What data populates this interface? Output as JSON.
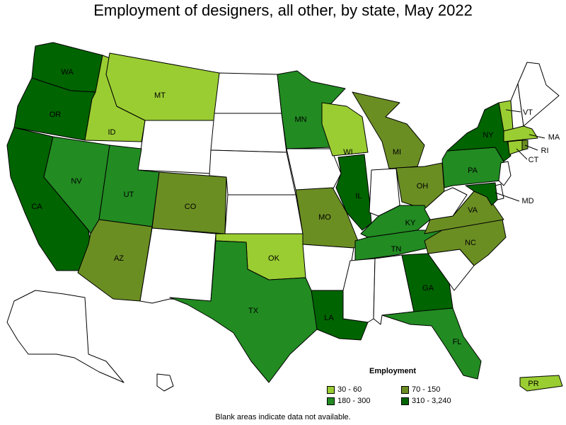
{
  "title": "Employment of designers, all other, by state, May 2022",
  "legend": {
    "title": "Employment",
    "items": [
      {
        "label": "30 - 60",
        "color": "#9acd32"
      },
      {
        "label": "70 - 150",
        "color": "#6b8e23"
      },
      {
        "label": "180 - 300",
        "color": "#228b22"
      },
      {
        "label": "310 - 3,240",
        "color": "#006400"
      }
    ]
  },
  "footnote": "Blank areas indicate data not available.",
  "colors": {
    "no_data": "#ffffff"
  },
  "states": {
    "WA": {
      "label": "WA",
      "class": 3
    },
    "OR": {
      "label": "OR",
      "class": 3
    },
    "CA": {
      "label": "CA",
      "class": 3
    },
    "ID": {
      "label": "ID",
      "class": 0
    },
    "MT": {
      "label": "MT",
      "class": 0
    },
    "NV": {
      "label": "NV",
      "class": 2
    },
    "UT": {
      "label": "UT",
      "class": 2
    },
    "AZ": {
      "label": "AZ",
      "class": 1
    },
    "CO": {
      "label": "CO",
      "class": 1
    },
    "TX": {
      "label": "TX",
      "class": 2
    },
    "OK": {
      "label": "OK",
      "class": 0
    },
    "MN": {
      "label": "MN",
      "class": 2
    },
    "WI": {
      "label": "WI",
      "class": 0
    },
    "MI": {
      "label": "MI",
      "class": 1
    },
    "MO": {
      "label": "MO",
      "class": 1
    },
    "IL": {
      "label": "IL",
      "class": 3
    },
    "OH": {
      "label": "OH",
      "class": 1
    },
    "KY": {
      "label": "KY",
      "class": 2
    },
    "TN": {
      "label": "TN",
      "class": 2
    },
    "GA": {
      "label": "GA",
      "class": 3
    },
    "FL": {
      "label": "FL",
      "class": 2
    },
    "LA": {
      "label": "LA",
      "class": 3
    },
    "NC": {
      "label": "NC",
      "class": 1
    },
    "VA": {
      "label": "VA",
      "class": 1
    },
    "PA": {
      "label": "PA",
      "class": 2
    },
    "NY": {
      "label": "NY",
      "class": 3
    },
    "MD": {
      "label": "MD",
      "class": 3
    },
    "VT": {
      "label": "VT",
      "class": 0
    },
    "MA": {
      "label": "MA",
      "class": 0
    },
    "RI": {
      "label": "RI",
      "class": 1
    },
    "CT": {
      "label": "CT",
      "class": 0
    },
    "PR": {
      "label": "PR",
      "class": 0
    },
    "WY": {
      "class": null
    },
    "ND": {
      "class": null
    },
    "SD": {
      "class": null
    },
    "NE": {
      "class": null
    },
    "KS": {
      "class": null
    },
    "NM": {
      "class": null
    },
    "IA": {
      "class": null
    },
    "IN": {
      "class": null
    },
    "AR": {
      "class": null
    },
    "MS": {
      "class": null
    },
    "AL": {
      "class": null
    },
    "SC": {
      "class": null
    },
    "WV": {
      "class": null
    },
    "NJ": {
      "class": null
    },
    "DE": {
      "class": null
    },
    "NH": {
      "class": null
    },
    "ME": {
      "class": null
    },
    "AK": {
      "class": null
    },
    "HI": {
      "class": null
    }
  }
}
